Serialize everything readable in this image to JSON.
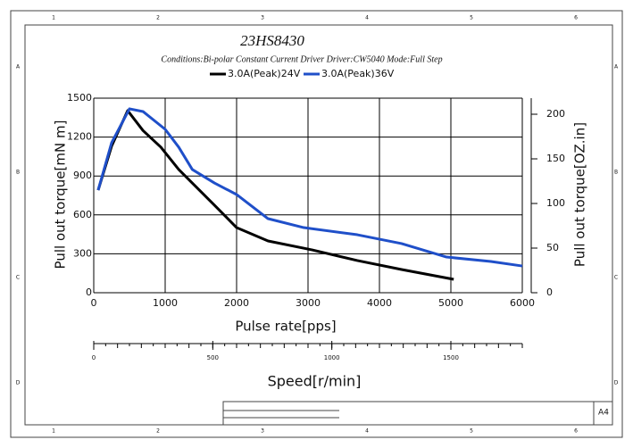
{
  "chart_data": {
    "type": "line",
    "title": "23HS8430",
    "subtitle": "Conditions:Bi-polar Constant Current Driver   Driver:CW5040    Mode:Full Step",
    "xlabel": "Pulse rate[pps]",
    "ylabel": "Pull out torque[mN m]",
    "y2label": "Pull out torque[OZ.in]",
    "xlim": [
      0,
      6000
    ],
    "xticks": [
      0,
      1000,
      2000,
      3000,
      4000,
      5000,
      6000
    ],
    "ylim": [
      0,
      1500
    ],
    "yticks": [
      0,
      300,
      600,
      900,
      1200,
      1500
    ],
    "y2lim": [
      0,
      218
    ],
    "y2ticks": [
      0,
      50,
      100,
      150,
      200
    ],
    "grid": true,
    "legend": "top",
    "series": [
      {
        "name": "3.0A(Peak)24V",
        "color": "#000000",
        "x": [
          62,
          250,
          475,
          690,
          940,
          1190,
          1690,
          2000,
          2440,
          3060,
          3690,
          4310,
          5040
        ],
        "values": [
          791,
          1130,
          1404,
          1250,
          1122,
          950,
          675,
          502,
          399,
          330,
          248,
          179,
          103
        ]
      },
      {
        "name": "3.0A(Peak)36V",
        "color": "#1f4fc9",
        "x": [
          62,
          250,
          500,
          690,
          1000,
          1190,
          1380,
          1690,
          2000,
          2440,
          2940,
          3690,
          4310,
          4940,
          5560,
          6000
        ],
        "values": [
          791,
          1156,
          1418,
          1397,
          1260,
          1122,
          950,
          846,
          757,
          571,
          502,
          447,
          379,
          275,
          241,
          206
        ]
      }
    ],
    "speed_axis": {
      "label": "Speed[r/min]",
      "lim": [
        0,
        1800
      ],
      "ticks": [
        0,
        500,
        1000,
        1500
      ]
    }
  },
  "frame": {
    "columns": [
      "1",
      "2",
      "3",
      "4",
      "5",
      "6"
    ],
    "rows": [
      "A",
      "B",
      "C",
      "D"
    ],
    "sheet_size": "A4"
  }
}
